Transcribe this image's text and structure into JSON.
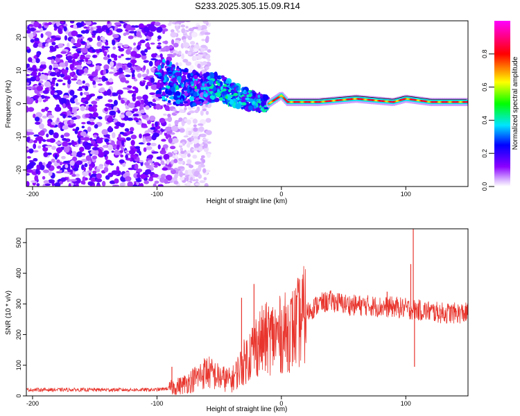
{
  "title": "S233.2025.305.15.09.R14",
  "chart_data": [
    {
      "type": "heatmap",
      "title": "S233.2025.305.15.09.R14",
      "xlabel": "Height of straight line (km)",
      "ylabel": "Frequency (Hz)",
      "xlim": [
        -205,
        150
      ],
      "ylim": [
        -25,
        25
      ],
      "xticks": [
        -200,
        -100,
        0,
        100
      ],
      "xtick_labels": [
        "-200",
        "-100",
        "0",
        "100"
      ],
      "yticks": [
        -20,
        -10,
        0,
        10,
        20
      ],
      "ytick_labels": [
        "-20",
        "-10",
        "0",
        "10",
        "20"
      ],
      "colorbar": {
        "label": "Normalized spectral amplitude",
        "range": [
          0.0,
          1.0
        ],
        "ticks": [
          0.0,
          0.2,
          0.4,
          0.6,
          0.8
        ],
        "tick_labels": [
          "0.0",
          "0.2",
          "0.4",
          "0.6",
          "0.8"
        ],
        "colors": [
          "#ffffff",
          "#d9b3ff",
          "#8b00ff",
          "#0000ff",
          "#00e5ff",
          "#00ff00",
          "#ffff00",
          "#ff0000",
          "#ff00ff"
        ]
      },
      "noise_region": {
        "x_range": [
          -205,
          -78
        ],
        "typical_amplitude": 0.15
      },
      "signal_ridge": [
        {
          "x": -95,
          "y": 7
        },
        {
          "x": -80,
          "y": 5
        },
        {
          "x": -65,
          "y": 4.5
        },
        {
          "x": -50,
          "y": 5
        },
        {
          "x": -40,
          "y": 3
        },
        {
          "x": -30,
          "y": 1.5
        },
        {
          "x": -20,
          "y": 0.5
        },
        {
          "x": -10,
          "y": 0
        },
        {
          "x": 0,
          "y": 2.5
        },
        {
          "x": 5,
          "y": 0.5
        },
        {
          "x": 30,
          "y": 0.5
        },
        {
          "x": 60,
          "y": 1.5
        },
        {
          "x": 90,
          "y": 0.5
        },
        {
          "x": 100,
          "y": 1.5
        },
        {
          "x": 120,
          "y": 0.5
        },
        {
          "x": 150,
          "y": 0.5
        }
      ]
    },
    {
      "type": "line",
      "xlabel": "Height of straight line (km)",
      "ylabel": "SNR (10 * v/v)",
      "xlim": [
        -205,
        150
      ],
      "ylim": [
        0,
        545
      ],
      "xticks": [
        -200,
        -100,
        0,
        100
      ],
      "xtick_labels": [
        "-200",
        "-100",
        "0",
        "100"
      ],
      "yticks": [
        0,
        100,
        200,
        300,
        400,
        500
      ],
      "ytick_labels": [
        "0",
        "100",
        "200",
        "300",
        "400",
        "500"
      ],
      "series": [
        {
          "name": "SNR",
          "color": "#e8342c",
          "envelope": [
            {
              "x": -205,
              "y": 20
            },
            {
              "x": -150,
              "y": 20
            },
            {
              "x": -100,
              "y": 20
            },
            {
              "x": -90,
              "y": 25
            },
            {
              "x": -80,
              "y": 35
            },
            {
              "x": -70,
              "y": 55
            },
            {
              "x": -60,
              "y": 80
            },
            {
              "x": -50,
              "y": 60
            },
            {
              "x": -40,
              "y": 50
            },
            {
              "x": -30,
              "y": 110
            },
            {
              "x": -20,
              "y": 170
            },
            {
              "x": -10,
              "y": 190
            },
            {
              "x": 0,
              "y": 200
            },
            {
              "x": 10,
              "y": 220
            },
            {
              "x": 20,
              "y": 270
            },
            {
              "x": 30,
              "y": 300
            },
            {
              "x": 40,
              "y": 310
            },
            {
              "x": 50,
              "y": 300
            },
            {
              "x": 60,
              "y": 295
            },
            {
              "x": 70,
              "y": 295
            },
            {
              "x": 80,
              "y": 290
            },
            {
              "x": 90,
              "y": 290
            },
            {
              "x": 100,
              "y": 285
            },
            {
              "x": 110,
              "y": 280
            },
            {
              "x": 120,
              "y": 275
            },
            {
              "x": 130,
              "y": 270
            },
            {
              "x": 140,
              "y": 270
            },
            {
              "x": 150,
              "y": 270
            }
          ],
          "spikes": [
            {
              "x": -88,
              "y": 95
            },
            {
              "x": -22,
              "y": 365
            },
            {
              "x": -32,
              "y": 320
            },
            {
              "x": 85,
              "y": 340
            },
            {
              "x": 104,
              "y": 430
            },
            {
              "x": 106,
              "y": 545
            },
            {
              "x": 107,
              "y": 95
            }
          ]
        }
      ]
    }
  ]
}
